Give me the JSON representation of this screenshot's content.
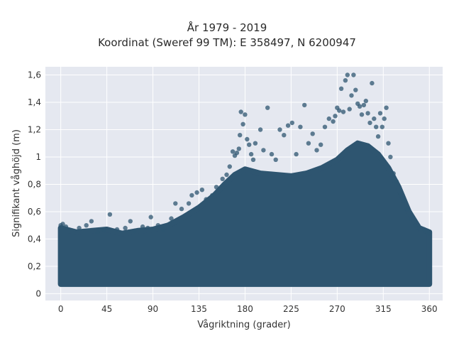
{
  "chart_data": {
    "type": "scatter",
    "title_line1": "År 1979 - 2019",
    "title_line2": "Koordinat (Sweref 99 TM): E 358497, N 6200947",
    "xlabel": "Vågriktning (grader)",
    "ylabel": "Signifikant våghöjd (m)",
    "xlim": [
      -15,
      373
    ],
    "ylim": [
      -0.05,
      1.66
    ],
    "x_ticks": [
      0,
      45,
      90,
      135,
      180,
      225,
      270,
      315,
      360
    ],
    "x_tick_labels": [
      "0",
      "45",
      "90",
      "135",
      "180",
      "225",
      "270",
      "315",
      "360"
    ],
    "y_ticks": [
      0,
      0.2,
      0.4,
      0.6,
      0.8,
      1.0,
      1.2,
      1.4,
      1.6
    ],
    "y_tick_labels": [
      "0",
      "0,2",
      "0,4",
      "0,6",
      "0,8",
      "1",
      "1,2",
      "1,4",
      "1,6"
    ],
    "grid": true,
    "colors": {
      "marker": "#2e5570",
      "plot_bg": "#e5e8f0",
      "grid": "#ffffff"
    },
    "envelope_upper": [
      [
        0,
        0.48
      ],
      [
        15,
        0.45
      ],
      [
        30,
        0.46
      ],
      [
        45,
        0.47
      ],
      [
        60,
        0.44
      ],
      [
        75,
        0.46
      ],
      [
        90,
        0.47
      ],
      [
        105,
        0.5
      ],
      [
        120,
        0.56
      ],
      [
        135,
        0.63
      ],
      [
        150,
        0.72
      ],
      [
        160,
        0.8
      ],
      [
        170,
        0.87
      ],
      [
        180,
        0.91
      ],
      [
        195,
        0.88
      ],
      [
        210,
        0.87
      ],
      [
        225,
        0.86
      ],
      [
        240,
        0.88
      ],
      [
        255,
        0.92
      ],
      [
        270,
        0.98
      ],
      [
        280,
        1.05
      ],
      [
        290,
        1.1
      ],
      [
        300,
        1.08
      ],
      [
        310,
        1.02
      ],
      [
        320,
        0.92
      ],
      [
        330,
        0.78
      ],
      [
        340,
        0.6
      ],
      [
        350,
        0.48
      ],
      [
        360,
        0.45
      ]
    ],
    "envelope_lower": [
      [
        0,
        0.07
      ],
      [
        360,
        0.07
      ]
    ],
    "points": [
      {
        "x": 0,
        "y": 0.5
      },
      {
        "x": 2,
        "y": 0.51
      },
      {
        "x": 5,
        "y": 0.49
      },
      {
        "x": 18,
        "y": 0.48
      },
      {
        "x": 25,
        "y": 0.5
      },
      {
        "x": 30,
        "y": 0.53
      },
      {
        "x": 36,
        "y": 0.45
      },
      {
        "x": 42,
        "y": 0.47
      },
      {
        "x": 48,
        "y": 0.58
      },
      {
        "x": 55,
        "y": 0.47
      },
      {
        "x": 63,
        "y": 0.48
      },
      {
        "x": 68,
        "y": 0.53
      },
      {
        "x": 72,
        "y": 0.46
      },
      {
        "x": 80,
        "y": 0.49
      },
      {
        "x": 85,
        "y": 0.48
      },
      {
        "x": 88,
        "y": 0.56
      },
      {
        "x": 95,
        "y": 0.5
      },
      {
        "x": 100,
        "y": 0.47
      },
      {
        "x": 108,
        "y": 0.55
      },
      {
        "x": 112,
        "y": 0.66
      },
      {
        "x": 118,
        "y": 0.62
      },
      {
        "x": 125,
        "y": 0.66
      },
      {
        "x": 128,
        "y": 0.72
      },
      {
        "x": 133,
        "y": 0.74
      },
      {
        "x": 138,
        "y": 0.76
      },
      {
        "x": 142,
        "y": 0.69
      },
      {
        "x": 148,
        "y": 0.72
      },
      {
        "x": 152,
        "y": 0.78
      },
      {
        "x": 158,
        "y": 0.84
      },
      {
        "x": 162,
        "y": 0.87
      },
      {
        "x": 165,
        "y": 0.93
      },
      {
        "x": 168,
        "y": 1.04
      },
      {
        "x": 170,
        "y": 1.01
      },
      {
        "x": 172,
        "y": 1.03
      },
      {
        "x": 174,
        "y": 1.06
      },
      {
        "x": 175,
        "y": 1.16
      },
      {
        "x": 176,
        "y": 1.33
      },
      {
        "x": 178,
        "y": 1.24
      },
      {
        "x": 180,
        "y": 1.31
      },
      {
        "x": 182,
        "y": 1.13
      },
      {
        "x": 184,
        "y": 1.09
      },
      {
        "x": 186,
        "y": 1.02
      },
      {
        "x": 188,
        "y": 0.98
      },
      {
        "x": 190,
        "y": 1.1
      },
      {
        "x": 195,
        "y": 1.2
      },
      {
        "x": 198,
        "y": 1.05
      },
      {
        "x": 202,
        "y": 1.36
      },
      {
        "x": 206,
        "y": 1.02
      },
      {
        "x": 210,
        "y": 0.98
      },
      {
        "x": 214,
        "y": 1.2
      },
      {
        "x": 218,
        "y": 1.16
      },
      {
        "x": 222,
        "y": 1.23
      },
      {
        "x": 226,
        "y": 1.25
      },
      {
        "x": 230,
        "y": 1.02
      },
      {
        "x": 234,
        "y": 1.22
      },
      {
        "x": 238,
        "y": 1.38
      },
      {
        "x": 242,
        "y": 1.1
      },
      {
        "x": 246,
        "y": 1.17
      },
      {
        "x": 250,
        "y": 1.05
      },
      {
        "x": 254,
        "y": 1.09
      },
      {
        "x": 258,
        "y": 1.22
      },
      {
        "x": 262,
        "y": 1.28
      },
      {
        "x": 266,
        "y": 1.26
      },
      {
        "x": 268,
        "y": 1.3
      },
      {
        "x": 270,
        "y": 1.36
      },
      {
        "x": 272,
        "y": 1.34
      },
      {
        "x": 274,
        "y": 1.5
      },
      {
        "x": 276,
        "y": 1.33
      },
      {
        "x": 278,
        "y": 1.56
      },
      {
        "x": 280,
        "y": 1.6
      },
      {
        "x": 282,
        "y": 1.35
      },
      {
        "x": 284,
        "y": 1.45
      },
      {
        "x": 286,
        "y": 1.6
      },
      {
        "x": 288,
        "y": 1.49
      },
      {
        "x": 290,
        "y": 1.39
      },
      {
        "x": 292,
        "y": 1.37
      },
      {
        "x": 294,
        "y": 1.31
      },
      {
        "x": 296,
        "y": 1.38
      },
      {
        "x": 298,
        "y": 1.41
      },
      {
        "x": 300,
        "y": 1.32
      },
      {
        "x": 302,
        "y": 1.25
      },
      {
        "x": 304,
        "y": 1.54
      },
      {
        "x": 306,
        "y": 1.28
      },
      {
        "x": 308,
        "y": 1.22
      },
      {
        "x": 310,
        "y": 1.15
      },
      {
        "x": 312,
        "y": 1.32
      },
      {
        "x": 314,
        "y": 1.22
      },
      {
        "x": 316,
        "y": 1.28
      },
      {
        "x": 318,
        "y": 1.36
      },
      {
        "x": 320,
        "y": 1.1
      },
      {
        "x": 322,
        "y": 1.0
      },
      {
        "x": 325,
        "y": 0.88
      },
      {
        "x": 328,
        "y": 0.82
      },
      {
        "x": 332,
        "y": 0.72
      },
      {
        "x": 335,
        "y": 0.68
      },
      {
        "x": 338,
        "y": 0.62
      },
      {
        "x": 342,
        "y": 0.55
      },
      {
        "x": 346,
        "y": 0.5
      },
      {
        "x": 350,
        "y": 0.48
      },
      {
        "x": 355,
        "y": 0.47
      },
      {
        "x": 358,
        "y": 0.45
      },
      {
        "x": 360,
        "y": 0.44
      }
    ]
  }
}
